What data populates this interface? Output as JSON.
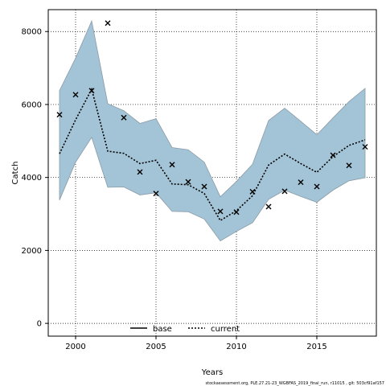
{
  "chart_data": {
    "type": "line",
    "xlabel": "Years",
    "ylabel": "Catch",
    "xlim": [
      1998.3,
      2018.7
    ],
    "ylim": [
      -350,
      8600
    ],
    "x_ticks": [
      2000,
      2005,
      2010,
      2015
    ],
    "y_ticks": [
      0,
      2000,
      4000,
      6000,
      8000
    ],
    "grid": true,
    "legend_position": "bottom-center",
    "legend": [
      {
        "name": "base",
        "style": "solid"
      },
      {
        "name": "current",
        "style": "dotted"
      }
    ],
    "colors": {
      "band_fill": "#a3c4d7",
      "band_edge": "#8a9ba6",
      "line": "#000000"
    },
    "x": [
      1999,
      2000,
      2001,
      2002,
      2003,
      2004,
      2005,
      2006,
      2007,
      2008,
      2009,
      2010,
      2011,
      2012,
      2013,
      2014,
      2015,
      2016,
      2017,
      2018
    ],
    "series": [
      {
        "name": "current",
        "values": [
          4650,
          5580,
          6420,
          4720,
          4660,
          4380,
          4470,
          3820,
          3800,
          3560,
          2820,
          3090,
          3500,
          4340,
          4640,
          4380,
          4140,
          4570,
          4880,
          5030
        ],
        "upper": [
          6380,
          7270,
          8290,
          6020,
          5830,
          5480,
          5610,
          4820,
          4760,
          4420,
          3470,
          3890,
          4360,
          5560,
          5900,
          5540,
          5170,
          5630,
          6080,
          6440
        ],
        "lower": [
          3380,
          4420,
          5100,
          3730,
          3740,
          3520,
          3580,
          3070,
          3060,
          2860,
          2260,
          2520,
          2760,
          3400,
          3650,
          3480,
          3320,
          3650,
          3910,
          3990
        ]
      }
    ],
    "observed": {
      "marker": "x",
      "values": [
        5720,
        6270,
        6380,
        8230,
        5640,
        4150,
        3560,
        4350,
        3880,
        3750,
        3070,
        3050,
        3610,
        3200,
        3620,
        3870,
        3750,
        4610,
        4330,
        4840
      ]
    }
  },
  "footnote": "stockassessment.org, PLE.27.21-23_WGBFAS_2019_final_run, r11015 , git: 503cf91af157"
}
